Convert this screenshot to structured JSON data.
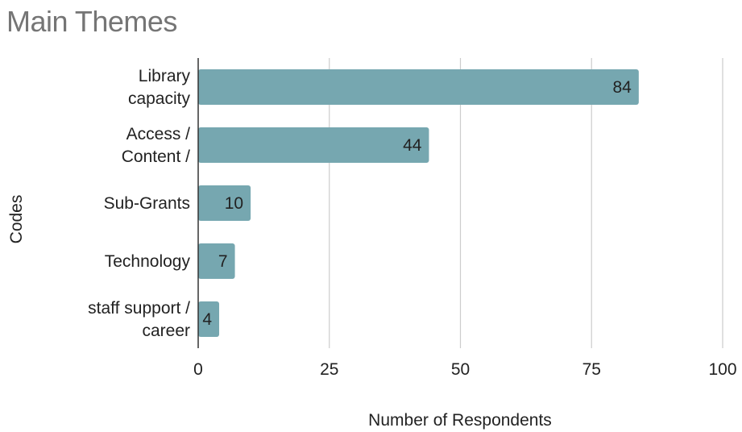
{
  "chart_data": {
    "type": "bar",
    "orientation": "horizontal",
    "title": "Main Themes",
    "xlabel": "Number of Respondents",
    "ylabel": "Codes",
    "categories": [
      [
        "Library",
        "capacity"
      ],
      [
        "Access /",
        "Content /"
      ],
      [
        "Sub-Grants"
      ],
      [
        "Technology"
      ],
      [
        "staff support /",
        "career"
      ]
    ],
    "values": [
      84,
      44,
      10,
      7,
      4
    ],
    "xlim": [
      0,
      100
    ],
    "xticks": [
      0,
      25,
      50,
      75,
      100
    ],
    "grid": true,
    "legend": "none",
    "bar_color": "#76a7b0"
  }
}
